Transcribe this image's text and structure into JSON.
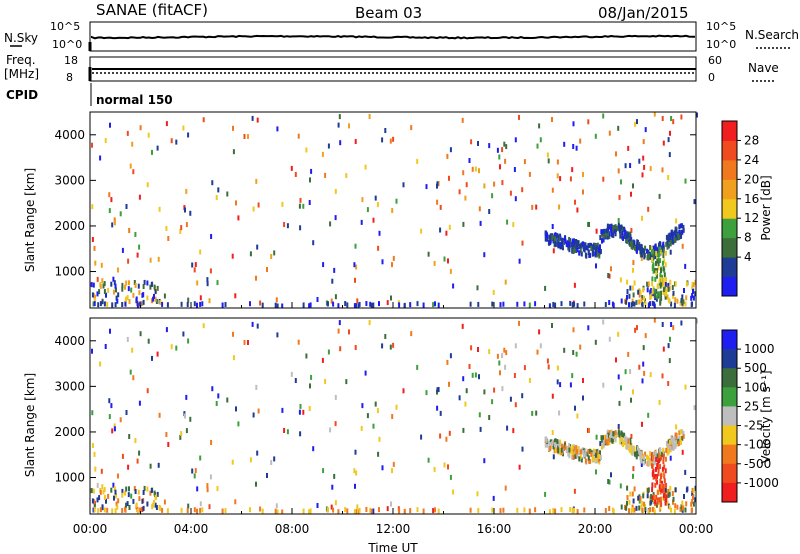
{
  "header": {
    "title_left": "SANAE (fitACF)",
    "title_center": "Beam 03",
    "title_right": "08/Jan/2015"
  },
  "strips": {
    "nsky_label": "N.Sky",
    "nsearch_label": "N.Search",
    "noise_ticks": [
      "10^5",
      "10^0"
    ],
    "freq_label": "Freq.",
    "freq_unit": "[MHz]",
    "freq_ticks": [
      "18",
      "8"
    ],
    "nave_label": "Nave",
    "nave_ticks": [
      "60",
      "0"
    ],
    "cpid_label": "CPID",
    "cpid_value": "normal 150"
  },
  "colors": {
    "power": [
      "#1e1ef0",
      "#1e3c96",
      "#3c6e3c",
      "#3ca03c",
      "#f0c81e",
      "#f0a01e",
      "#f0781e",
      "#f04b1e",
      "#f01e1e"
    ],
    "velocity": [
      "#1e1ef0",
      "#1e3c96",
      "#3c6e3c",
      "#3ca03c",
      "#bebebe",
      "#f0c81e",
      "#f0781e",
      "#f04b1e",
      "#f01e1e"
    ]
  },
  "chart_data": [
    {
      "type": "heatmap",
      "name": "power",
      "ylabel": "Slant Range [km]",
      "ylim": [
        200,
        4500
      ],
      "y_ticks": [
        "4000",
        "3000",
        "2000",
        "1000"
      ],
      "colorbar_label": "Power [dB]",
      "colorbar_ticks": [
        "28",
        "24",
        "20",
        "16",
        "12",
        "8",
        "4"
      ],
      "colorbar_range": [
        0,
        32
      ]
    },
    {
      "type": "heatmap",
      "name": "velocity",
      "ylabel": "Slant Range [km]",
      "ylim": [
        200,
        4500
      ],
      "y_ticks": [
        "4000",
        "3000",
        "2000",
        "1000"
      ],
      "xlabel": "Time UT",
      "x_ticks": [
        "00:00",
        "04:00",
        "08:00",
        "12:00",
        "16:00",
        "20:00",
        "00:00"
      ],
      "xlim_hours": [
        0,
        24
      ],
      "colorbar_label": "Velocity [m s⁻¹]",
      "colorbar_ticks": [
        "1000",
        "500",
        "100",
        "25",
        "-25",
        "-100",
        "-500",
        "-1000"
      ]
    }
  ]
}
